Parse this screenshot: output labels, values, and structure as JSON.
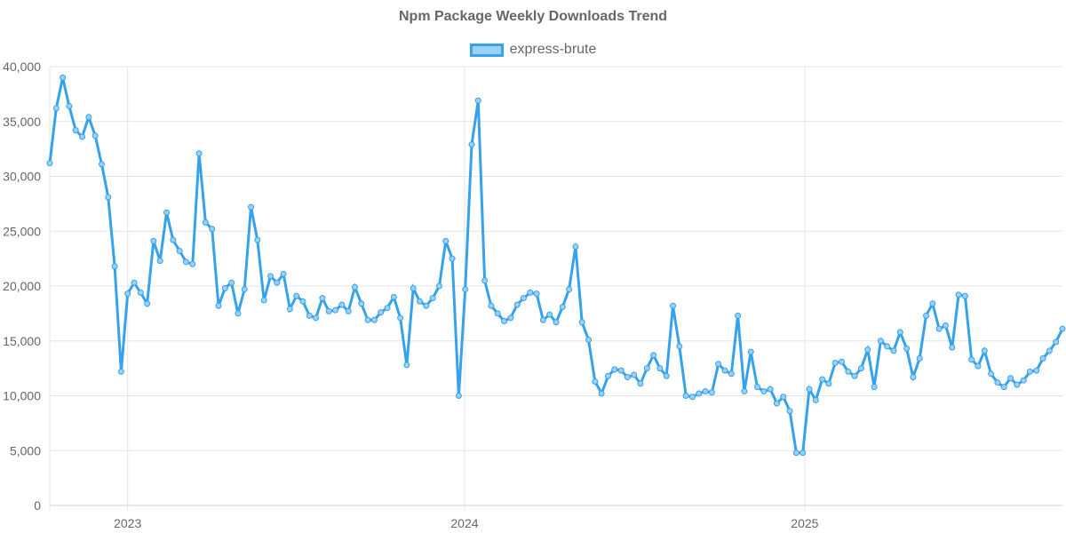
{
  "chart_data": {
    "type": "line",
    "title": "Npm Package Weekly Downloads Trend",
    "xlabel": "",
    "ylabel": "",
    "ylim": [
      0,
      40000
    ],
    "yticks": [
      "0",
      "5,000",
      "10,000",
      "15,000",
      "20,000",
      "25,000",
      "30,000",
      "35,000",
      "40,000"
    ],
    "ytick_values": [
      0,
      5000,
      10000,
      15000,
      20000,
      25000,
      30000,
      35000,
      40000
    ],
    "xticks": [
      {
        "label": "2023",
        "week": 12
      },
      {
        "label": "2024",
        "week": 63.9
      },
      {
        "label": "2025",
        "week": 116.3
      }
    ],
    "x_unit": "week index",
    "grid": true,
    "legend_position": "top",
    "colors": {
      "line": "#36a2eb",
      "fill": "#9ad0f5"
    },
    "series": [
      {
        "name": "express-brute",
        "values": [
          31200,
          36200,
          39000,
          36400,
          34200,
          33600,
          35400,
          33700,
          31100,
          28100,
          21800,
          12200,
          19300,
          20300,
          19400,
          18400,
          24100,
          22300,
          26700,
          24200,
          23200,
          22200,
          22000,
          32100,
          25800,
          25200,
          18200,
          19800,
          20300,
          17500,
          19700,
          27200,
          24200,
          18700,
          20900,
          20300,
          21100,
          17900,
          19100,
          18600,
          17300,
          17100,
          18900,
          17700,
          17800,
          18300,
          17700,
          19900,
          18400,
          16900,
          16900,
          17600,
          18000,
          19000,
          17100,
          12800,
          19800,
          18600,
          18200,
          18900,
          20000,
          24100,
          22500,
          10000,
          19700,
          32900,
          36900,
          20500,
          18200,
          17500,
          16800,
          17100,
          18300,
          18900,
          19400,
          19300,
          16900,
          17400,
          16700,
          18100,
          19700,
          23600,
          16700,
          15100,
          11300,
          10200,
          11800,
          12400,
          12300,
          11700,
          11900,
          11100,
          12500,
          13700,
          12500,
          11800,
          18200,
          14500,
          10000,
          9900,
          10200,
          10400,
          10300,
          12900,
          12300,
          12000,
          17300,
          10400,
          14000,
          10800,
          10400,
          10600,
          9300,
          9900,
          8600,
          4800,
          4800,
          10600,
          9600,
          11500,
          11100,
          13000,
          13100,
          12200,
          11800,
          12500,
          14200,
          10800,
          15000,
          14500,
          14100,
          15800,
          14300,
          11700,
          13400,
          17300,
          18400,
          16100,
          16400,
          14400,
          19200,
          19100,
          13300,
          12700,
          14100,
          12000,
          11200,
          10800,
          11600,
          11000,
          11400,
          12200,
          12300,
          13400,
          14100,
          14900,
          16100
        ]
      }
    ]
  }
}
